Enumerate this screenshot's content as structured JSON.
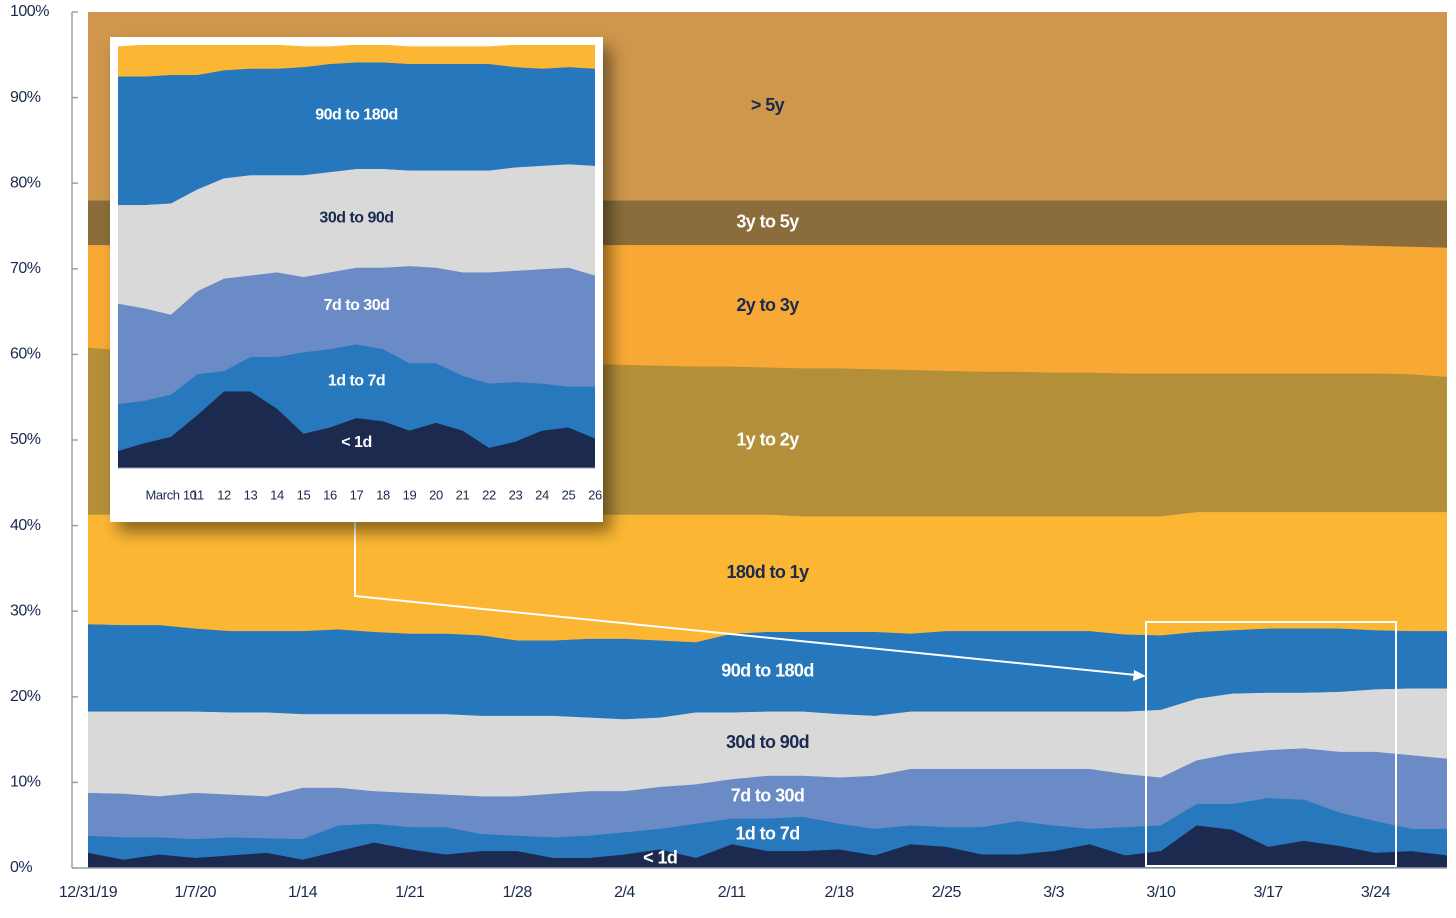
{
  "chart_data": [
    {
      "type": "area",
      "stacked": true,
      "categories": [
        "12/31/19",
        null,
        null,
        "1/7/20",
        null,
        null,
        "1/14",
        null,
        null,
        "1/21",
        null,
        null,
        "1/28",
        null,
        null,
        "2/4",
        null,
        null,
        "2/11",
        null,
        null,
        "2/18",
        null,
        null,
        "2/25",
        null,
        null,
        "3/3",
        null,
        null,
        "3/10",
        null,
        null,
        "3/17",
        null,
        null,
        "3/24",
        null,
        null
      ],
      "ylim": [
        0,
        100
      ],
      "yticks": [
        {
          "value": 0,
          "label": "0%"
        },
        {
          "value": 10,
          "label": "10%"
        },
        {
          "value": 20,
          "label": "20%"
        },
        {
          "value": 30,
          "label": "30%"
        },
        {
          "value": 40,
          "label": "40%"
        },
        {
          "value": 50,
          "label": "50%"
        },
        {
          "value": 60,
          "label": "60%"
        },
        {
          "value": 70,
          "label": "70%"
        },
        {
          "value": 80,
          "label": "80%"
        },
        {
          "value": 90,
          "label": "90%"
        },
        {
          "value": 100,
          "label": "100%"
        }
      ],
      "series": [
        {
          "name": "< 1d",
          "color": "#1b2a4e",
          "values": [
            1.8,
            1.0,
            1.6,
            1.2,
            1.5,
            1.8,
            1.0,
            2.0,
            3.0,
            2.2,
            1.6,
            2.0,
            2.0,
            1.2,
            1.2,
            1.6,
            2.2,
            1.2,
            2.8,
            2.0,
            2.0,
            2.2,
            1.5,
            2.8,
            2.5,
            1.6,
            1.6,
            2.0,
            2.8,
            1.5,
            2.0,
            5.0,
            4.5,
            2.5,
            3.2,
            2.6,
            1.8,
            2.0,
            1.5
          ]
        },
        {
          "name": "1d to 7d",
          "color": "#2878be",
          "values": [
            2.0,
            2.6,
            2.0,
            2.2,
            2.1,
            1.7,
            2.4,
            3.0,
            2.2,
            2.6,
            3.2,
            2.0,
            1.8,
            2.4,
            2.6,
            2.6,
            2.4,
            4.0,
            3.0,
            3.8,
            4.0,
            3.0,
            3.1,
            2.2,
            2.3,
            3.2,
            3.9,
            3.0,
            1.8,
            3.3,
            3.0,
            2.5,
            3.0,
            5.7,
            4.8,
            3.9,
            3.7,
            2.6,
            3.1
          ]
        },
        {
          "name": "7d to 30d",
          "color": "#6a8bc6",
          "values": [
            5.0,
            5.1,
            4.8,
            5.4,
            5.0,
            4.9,
            6.0,
            4.4,
            3.8,
            4.0,
            3.8,
            4.4,
            4.6,
            5.1,
            5.2,
            4.8,
            4.9,
            4.6,
            4.6,
            5.0,
            4.8,
            5.4,
            6.2,
            6.6,
            6.8,
            6.8,
            6.1,
            6.6,
            7.0,
            6.2,
            5.6,
            5.1,
            5.9,
            5.6,
            6.0,
            7.1,
            8.1,
            8.6,
            8.2
          ]
        },
        {
          "name": "30d to 90d",
          "color": "#d9d9d9",
          "values": [
            9.5,
            9.6,
            9.9,
            9.5,
            9.6,
            9.8,
            8.6,
            8.6,
            9.0,
            9.2,
            9.4,
            9.4,
            9.4,
            9.1,
            8.6,
            8.4,
            8.1,
            8.4,
            7.8,
            7.5,
            7.5,
            7.4,
            7.0,
            6.7,
            6.7,
            6.7,
            6.7,
            6.7,
            6.7,
            7.3,
            7.9,
            7.2,
            7.0,
            6.7,
            6.5,
            7.0,
            7.3,
            7.8,
            8.2
          ]
        },
        {
          "name": "90d to 180d",
          "color": "#2777bc",
          "values": [
            10.2,
            10.1,
            10.1,
            9.7,
            9.5,
            9.5,
            9.7,
            9.9,
            9.6,
            9.4,
            9.4,
            9.4,
            8.8,
            8.8,
            9.2,
            9.4,
            9.0,
            8.2,
            9.2,
            9.3,
            9.3,
            9.6,
            9.8,
            9.1,
            9.4,
            9.4,
            9.4,
            9.4,
            9.4,
            9.0,
            8.7,
            7.8,
            7.4,
            7.5,
            7.5,
            7.4,
            6.9,
            6.7,
            6.7
          ]
        },
        {
          "name": "180d to 1y",
          "color": "#fbb733",
          "values": [
            12.8,
            12.9,
            12.9,
            13.3,
            13.6,
            13.6,
            13.6,
            13.4,
            13.7,
            13.9,
            13.9,
            14.1,
            14.7,
            14.7,
            14.5,
            14.5,
            14.7,
            14.9,
            13.9,
            13.7,
            13.5,
            13.5,
            13.5,
            13.7,
            13.4,
            13.4,
            13.4,
            13.4,
            13.4,
            13.8,
            13.9,
            14.0,
            13.8,
            13.6,
            13.6,
            13.6,
            13.8,
            13.9,
            13.9
          ]
        },
        {
          "name": "1y to 2y",
          "color": "#b38f3a",
          "values": [
            19.5,
            19.2,
            19.0,
            18.8,
            18.6,
            18.4,
            18.3,
            18.1,
            18.0,
            17.9,
            17.8,
            17.7,
            17.7,
            17.6,
            17.6,
            17.5,
            17.4,
            17.3,
            17.3,
            17.2,
            17.3,
            17.3,
            17.2,
            17.1,
            17.0,
            16.9,
            16.9,
            16.8,
            16.8,
            16.7,
            16.7,
            16.2,
            16.2,
            16.2,
            16.2,
            16.2,
            16.2,
            16.1,
            15.8
          ]
        },
        {
          "name": "2y to 3y",
          "color": "#f8a935",
          "values": [
            12.0,
            12.3,
            12.5,
            12.7,
            12.9,
            13.1,
            13.2,
            13.4,
            13.5,
            13.6,
            13.7,
            13.8,
            13.8,
            13.9,
            13.9,
            14.0,
            14.1,
            14.2,
            14.2,
            14.3,
            14.4,
            14.4,
            14.5,
            14.6,
            14.7,
            14.8,
            14.8,
            14.9,
            14.9,
            15.0,
            15.0,
            15.0,
            15.0,
            15.0,
            15.0,
            15.0,
            14.9,
            14.9,
            15.1
          ]
        },
        {
          "name": "3y to 5y",
          "color": "#8a6d3a",
          "values": [
            5.2,
            5.2,
            5.2,
            5.2,
            5.2,
            5.2,
            5.2,
            5.2,
            5.2,
            5.2,
            5.2,
            5.2,
            5.2,
            5.2,
            5.2,
            5.2,
            5.2,
            5.2,
            5.2,
            5.2,
            5.2,
            5.2,
            5.2,
            5.2,
            5.2,
            5.2,
            5.2,
            5.2,
            5.2,
            5.2,
            5.2,
            5.2,
            5.2,
            5.2,
            5.2,
            5.2,
            5.3,
            5.4,
            5.5
          ]
        },
        {
          "name": "> 5y",
          "color": "#cf974c",
          "values": [
            22,
            22,
            22,
            22,
            22,
            22,
            22,
            22,
            22,
            22,
            22,
            22,
            22,
            22,
            22,
            22,
            22,
            22,
            22,
            22,
            22,
            22,
            22,
            22,
            22,
            22,
            22,
            22,
            22,
            22,
            22,
            22,
            22,
            22,
            22,
            22,
            22,
            22,
            22
          ]
        }
      ]
    },
    {
      "type": "area",
      "stacked": true,
      "categories": [
        null,
        null,
        "March 10",
        "11",
        "12",
        "13",
        "14",
        "15",
        "16",
        "17",
        "18",
        "19",
        "20",
        "21",
        "22",
        "23",
        "24",
        "25",
        "26"
      ],
      "ylim": [
        0,
        27
      ],
      "series": [
        {
          "name": "< 1d",
          "color": "#1b2a4e",
          "values": [
            1.1,
            1.6,
            2.0,
            3.4,
            4.9,
            4.9,
            3.8,
            2.2,
            2.6,
            3.2,
            3.0,
            2.4,
            2.9,
            2.4,
            1.3,
            1.7,
            2.4,
            2.6,
            1.9
          ]
        },
        {
          "name": "1d to 7d",
          "color": "#2878be",
          "values": [
            3.0,
            2.7,
            2.7,
            2.6,
            1.3,
            2.2,
            3.3,
            5.2,
            5.0,
            4.7,
            4.6,
            4.3,
            3.8,
            3.5,
            4.1,
            3.8,
            3.0,
            2.6,
            3.3
          ]
        },
        {
          "name": "7d to 30d",
          "color": "#6a8bc6",
          "values": [
            6.4,
            5.9,
            5.1,
            5.3,
            5.9,
            5.2,
            5.4,
            4.8,
            4.9,
            4.9,
            5.2,
            6.2,
            6.1,
            6.6,
            7.1,
            7.1,
            7.3,
            7.6,
            7.1
          ]
        },
        {
          "name": "30d to 90d",
          "color": "#d9d9d9",
          "values": [
            6.3,
            6.6,
            7.1,
            6.5,
            6.4,
            6.4,
            6.2,
            6.5,
            6.4,
            6.3,
            6.3,
            6.1,
            6.2,
            6.5,
            6.5,
            6.6,
            6.6,
            6.6,
            7.0
          ]
        },
        {
          "name": "90d to 180d",
          "color": "#2777bc",
          "values": [
            8.2,
            8.2,
            8.2,
            7.3,
            6.9,
            6.8,
            6.8,
            6.9,
            6.9,
            6.8,
            6.8,
            6.8,
            6.8,
            6.8,
            6.8,
            6.4,
            6.2,
            6.2,
            6.2
          ]
        },
        {
          "color": "#fbb733",
          "values": [
            1.9,
            2.0,
            2.0,
            2.0,
            1.7,
            1.5,
            1.5,
            1.3,
            1.1,
            1.1,
            1.1,
            1.1,
            1.1,
            1.1,
            1.1,
            1.4,
            1.5,
            1.5,
            1.5
          ]
        }
      ]
    }
  ]
}
